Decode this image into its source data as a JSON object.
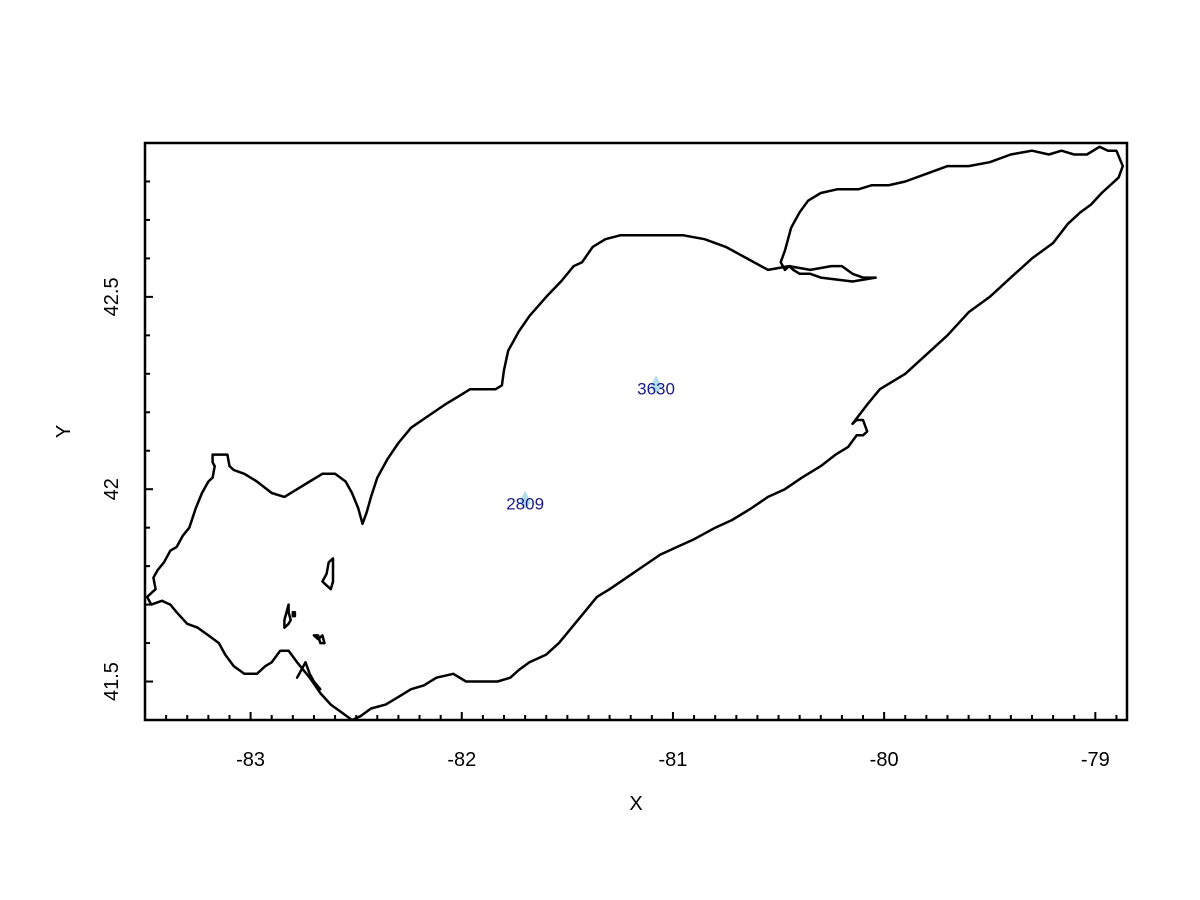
{
  "chart_data": {
    "type": "scatter",
    "title": "",
    "xlabel": "X",
    "ylabel": "Y",
    "xlim": [
      -83.5,
      -78.85
    ],
    "ylim": [
      41.4,
      42.9
    ],
    "x_ticks": [
      -83,
      -82,
      -81,
      -80,
      -79
    ],
    "y_ticks": [
      41.5,
      42,
      42.5
    ],
    "x_tick_labels": [
      "-83",
      "-82",
      "-81",
      "-80",
      "-79"
    ],
    "y_tick_labels": [
      "41.5",
      "42",
      "42.5"
    ],
    "x_minor_step": 0.1,
    "y_minor_step": 0.1,
    "points": [
      {
        "label": "2809",
        "x": -81.7,
        "y": 41.97
      },
      {
        "label": "3630",
        "x": -81.08,
        "y": 42.27
      }
    ],
    "shoreline": [
      {
        "name": "mainland",
        "closed": true,
        "coords": [
          [
            -83.47,
            41.73
          ],
          [
            -83.49,
            41.72
          ],
          [
            -83.47,
            41.7
          ],
          [
            -83.42,
            41.71
          ],
          [
            -83.38,
            41.7
          ],
          [
            -83.35,
            41.68
          ],
          [
            -83.3,
            41.65
          ],
          [
            -83.25,
            41.64
          ],
          [
            -83.2,
            41.62
          ],
          [
            -83.15,
            41.6
          ],
          [
            -83.12,
            41.57
          ],
          [
            -83.08,
            41.54
          ],
          [
            -83.03,
            41.52
          ],
          [
            -82.97,
            41.52
          ],
          [
            -82.93,
            41.54
          ],
          [
            -82.9,
            41.55
          ],
          [
            -82.86,
            41.58
          ],
          [
            -82.82,
            41.58
          ],
          [
            -82.78,
            41.55
          ],
          [
            -82.72,
            41.51
          ],
          [
            -82.67,
            41.47
          ],
          [
            -82.62,
            41.44
          ],
          [
            -82.57,
            41.42
          ],
          [
            -82.52,
            41.4
          ],
          [
            -82.48,
            41.41
          ],
          [
            -82.43,
            41.43
          ],
          [
            -82.36,
            41.44
          ],
          [
            -82.3,
            41.46
          ],
          [
            -82.24,
            41.48
          ],
          [
            -82.18,
            41.49
          ],
          [
            -82.12,
            41.51
          ],
          [
            -82.04,
            41.52
          ],
          [
            -81.98,
            41.5
          ],
          [
            -81.92,
            41.5
          ],
          [
            -81.83,
            41.5
          ],
          [
            -81.77,
            41.51
          ],
          [
            -81.73,
            41.53
          ],
          [
            -81.68,
            41.55
          ],
          [
            -81.6,
            41.57
          ],
          [
            -81.54,
            41.6
          ],
          [
            -81.48,
            41.64
          ],
          [
            -81.42,
            41.68
          ],
          [
            -81.36,
            41.72
          ],
          [
            -81.3,
            41.74
          ],
          [
            -81.22,
            41.77
          ],
          [
            -81.14,
            41.8
          ],
          [
            -81.06,
            41.83
          ],
          [
            -80.98,
            41.85
          ],
          [
            -80.9,
            41.87
          ],
          [
            -80.8,
            41.9
          ],
          [
            -80.72,
            41.92
          ],
          [
            -80.63,
            41.95
          ],
          [
            -80.55,
            41.98
          ],
          [
            -80.47,
            42.0
          ],
          [
            -80.39,
            42.03
          ],
          [
            -80.3,
            42.06
          ],
          [
            -80.23,
            42.09
          ],
          [
            -80.17,
            42.11
          ],
          [
            -80.13,
            42.14
          ],
          [
            -80.1,
            42.14
          ],
          [
            -80.08,
            42.15
          ],
          [
            -80.1,
            42.18
          ],
          [
            -80.13,
            42.18
          ],
          [
            -80.15,
            42.17
          ],
          [
            -80.08,
            42.22
          ],
          [
            -80.02,
            42.26
          ],
          [
            -79.9,
            42.3
          ],
          [
            -79.8,
            42.35
          ],
          [
            -79.7,
            42.4
          ],
          [
            -79.6,
            42.46
          ],
          [
            -79.5,
            42.5
          ],
          [
            -79.4,
            42.55
          ],
          [
            -79.3,
            42.6
          ],
          [
            -79.2,
            42.64
          ],
          [
            -79.13,
            42.69
          ],
          [
            -79.07,
            42.72
          ],
          [
            -79.02,
            42.74
          ],
          [
            -78.97,
            42.77
          ],
          [
            -78.89,
            42.81
          ],
          [
            -78.87,
            42.84
          ],
          [
            -78.9,
            42.88
          ],
          [
            -78.94,
            42.88
          ],
          [
            -78.98,
            42.89
          ],
          [
            -79.04,
            42.87
          ],
          [
            -79.1,
            42.87
          ],
          [
            -79.16,
            42.88
          ],
          [
            -79.22,
            42.87
          ],
          [
            -79.3,
            42.88
          ],
          [
            -79.4,
            42.87
          ],
          [
            -79.5,
            42.85
          ],
          [
            -79.6,
            42.84
          ],
          [
            -79.7,
            42.84
          ],
          [
            -79.8,
            42.82
          ],
          [
            -79.9,
            42.8
          ],
          [
            -79.98,
            42.79
          ],
          [
            -80.06,
            42.79
          ],
          [
            -80.12,
            42.78
          ],
          [
            -80.22,
            42.78
          ],
          [
            -80.3,
            42.77
          ],
          [
            -80.36,
            42.75
          ],
          [
            -80.4,
            42.72
          ],
          [
            -80.44,
            42.68
          ],
          [
            -80.47,
            42.62
          ],
          [
            -80.49,
            42.59
          ],
          [
            -80.47,
            42.57
          ],
          [
            -80.45,
            42.58
          ],
          [
            -80.43,
            42.57
          ],
          [
            -80.4,
            42.56
          ],
          [
            -80.35,
            42.56
          ],
          [
            -80.3,
            42.55
          ],
          [
            -80.15,
            42.54
          ],
          [
            -80.04,
            42.55
          ],
          [
            -80.1,
            42.55
          ],
          [
            -80.15,
            42.56
          ],
          [
            -80.2,
            42.58
          ],
          [
            -80.25,
            42.58
          ],
          [
            -80.35,
            42.57
          ],
          [
            -80.45,
            42.58
          ],
          [
            -80.55,
            42.57
          ],
          [
            -80.65,
            42.6
          ],
          [
            -80.75,
            42.63
          ],
          [
            -80.85,
            42.65
          ],
          [
            -80.95,
            42.66
          ],
          [
            -81.05,
            42.66
          ],
          [
            -81.15,
            42.66
          ],
          [
            -81.25,
            42.66
          ],
          [
            -81.32,
            42.65
          ],
          [
            -81.38,
            42.63
          ],
          [
            -81.43,
            42.59
          ],
          [
            -81.47,
            42.58
          ],
          [
            -81.53,
            42.54
          ],
          [
            -81.6,
            42.5
          ],
          [
            -81.68,
            42.45
          ],
          [
            -81.73,
            42.41
          ],
          [
            -81.78,
            42.36
          ],
          [
            -81.8,
            42.31
          ],
          [
            -81.81,
            42.27
          ],
          [
            -81.84,
            42.26
          ],
          [
            -81.9,
            42.26
          ],
          [
            -81.96,
            42.26
          ],
          [
            -82.02,
            42.24
          ],
          [
            -82.08,
            42.22
          ],
          [
            -82.16,
            42.19
          ],
          [
            -82.24,
            42.16
          ],
          [
            -82.3,
            42.12
          ],
          [
            -82.35,
            42.08
          ],
          [
            -82.4,
            42.03
          ],
          [
            -82.43,
            41.98
          ],
          [
            -82.45,
            41.94
          ],
          [
            -82.47,
            41.91
          ],
          [
            -82.49,
            41.95
          ],
          [
            -82.52,
            41.99
          ],
          [
            -82.55,
            42.02
          ],
          [
            -82.6,
            42.04
          ],
          [
            -82.66,
            42.04
          ],
          [
            -82.72,
            42.02
          ],
          [
            -82.78,
            42.0
          ],
          [
            -82.84,
            41.98
          ],
          [
            -82.9,
            41.99
          ],
          [
            -82.97,
            42.02
          ],
          [
            -83.03,
            42.04
          ],
          [
            -83.08,
            42.05
          ],
          [
            -83.1,
            42.06
          ],
          [
            -83.11,
            42.09
          ],
          [
            -83.18,
            42.09
          ],
          [
            -83.18,
            42.07
          ],
          [
            -83.17,
            42.06
          ],
          [
            -83.18,
            42.03
          ],
          [
            -83.2,
            42.02
          ],
          [
            -83.23,
            41.99
          ],
          [
            -83.26,
            41.95
          ],
          [
            -83.29,
            41.9
          ],
          [
            -83.32,
            41.88
          ],
          [
            -83.35,
            41.85
          ],
          [
            -83.38,
            41.84
          ],
          [
            -83.41,
            41.81
          ],
          [
            -83.44,
            41.79
          ],
          [
            -83.46,
            41.77
          ],
          [
            -83.45,
            41.74
          ],
          [
            -83.47,
            41.73
          ]
        ]
      },
      {
        "name": "pelee-island",
        "closed": true,
        "coords": [
          [
            -82.63,
            41.81
          ],
          [
            -82.61,
            41.82
          ],
          [
            -82.61,
            41.76
          ],
          [
            -82.62,
            41.74
          ],
          [
            -82.64,
            41.75
          ],
          [
            -82.66,
            41.76
          ],
          [
            -82.64,
            41.78
          ],
          [
            -82.63,
            41.81
          ]
        ]
      },
      {
        "name": "kelleys-island",
        "closed": true,
        "coords": [
          [
            -82.68,
            41.62
          ],
          [
            -82.7,
            41.62
          ],
          [
            -82.68,
            41.61
          ],
          [
            -82.66,
            41.62
          ],
          [
            -82.65,
            41.6
          ],
          [
            -82.67,
            41.6
          ],
          [
            -82.68,
            41.62
          ]
        ]
      },
      {
        "name": "bass-islands-a",
        "closed": true,
        "coords": [
          [
            -82.82,
            41.7
          ],
          [
            -82.82,
            41.68
          ],
          [
            -82.81,
            41.66
          ],
          [
            -82.82,
            41.65
          ],
          [
            -82.84,
            41.64
          ],
          [
            -82.84,
            41.66
          ],
          [
            -82.83,
            41.68
          ],
          [
            -82.82,
            41.7
          ]
        ]
      },
      {
        "name": "bass-islands-b",
        "closed": true,
        "coords": [
          [
            -82.8,
            41.68
          ],
          [
            -82.79,
            41.68
          ],
          [
            -82.79,
            41.67
          ],
          [
            -82.8,
            41.67
          ],
          [
            -82.8,
            41.68
          ]
        ]
      },
      {
        "name": "catawba-shore",
        "closed": false,
        "coords": [
          [
            -82.78,
            41.51
          ],
          [
            -82.76,
            41.53
          ],
          [
            -82.74,
            41.55
          ],
          [
            -82.72,
            41.52
          ],
          [
            -82.7,
            41.5
          ],
          [
            -82.67,
            41.48
          ]
        ]
      }
    ]
  }
}
